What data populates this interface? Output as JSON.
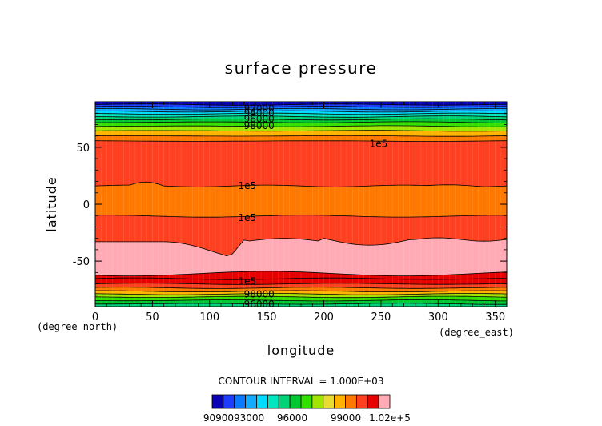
{
  "chart_data": {
    "type": "heatmap",
    "title": "surface pressure",
    "xlabel": "longitude",
    "ylabel": "latitude",
    "x_unit": "(degree_east)",
    "y_unit": "(degree_north)",
    "xlim": [
      0,
      360
    ],
    "ylim": [
      -90,
      90
    ],
    "x_ticks": [
      0,
      50,
      100,
      150,
      200,
      250,
      300,
      350
    ],
    "y_ticks": [
      50,
      0,
      -50
    ],
    "contour_interval_text": "CONTOUR INTERVAL = 1.000E+03",
    "colorbar": {
      "colors": [
        "#0a00b4",
        "#1e3cff",
        "#0a78ff",
        "#14aaff",
        "#00dcff",
        "#00e6be",
        "#00d278",
        "#00c832",
        "#34e000",
        "#a0e600",
        "#e6dc32",
        "#ffb400",
        "#ff7800",
        "#ff4020",
        "#e60000",
        "#ffaab4"
      ],
      "labels": [
        "9090093000",
        "96000",
        "99000",
        "1.02e+5"
      ]
    },
    "bands": [
      {
        "level": 90000,
        "color": "#0a00b4"
      },
      {
        "level": 91000,
        "color": "#1e3cff"
      },
      {
        "level": 92000,
        "color": "#0a78ff"
      },
      {
        "level": 93000,
        "color": "#14aaff"
      },
      {
        "level": 94000,
        "color": "#00dcff"
      },
      {
        "level": 95000,
        "color": "#00e6be"
      },
      {
        "level": 96000,
        "color": "#00d278"
      },
      {
        "level": 97000,
        "color": "#00c832"
      },
      {
        "level": 98000,
        "color": "#34e000"
      },
      {
        "level": 99000,
        "color": "#a0e600"
      },
      {
        "level": 100000,
        "color": "#ffb400"
      },
      {
        "level": 101000,
        "color": "#ff4020"
      },
      {
        "level": 102000,
        "color": "#e60000"
      },
      {
        "level": 103000,
        "color": "#ffaab4"
      }
    ],
    "contour_labels": [
      {
        "text": "92000",
        "lon": 130,
        "lat": 84
      },
      {
        "text": "94000",
        "lon": 130,
        "lat": 80
      },
      {
        "text": "96000",
        "lon": 130,
        "lat": 75
      },
      {
        "text": "98000",
        "lon": 130,
        "lat": 69
      },
      {
        "text": "1e5",
        "lon": 240,
        "lat": 53
      },
      {
        "text": "1e5",
        "lon": 125,
        "lat": 16
      },
      {
        "text": "1e5",
        "lon": 125,
        "lat": -12
      },
      {
        "text": "1e5",
        "lon": 125,
        "lat": -68
      },
      {
        "text": "98000",
        "lon": 130,
        "lat": -79
      },
      {
        "text": "96000",
        "lon": 130,
        "lat": -88
      }
    ]
  }
}
